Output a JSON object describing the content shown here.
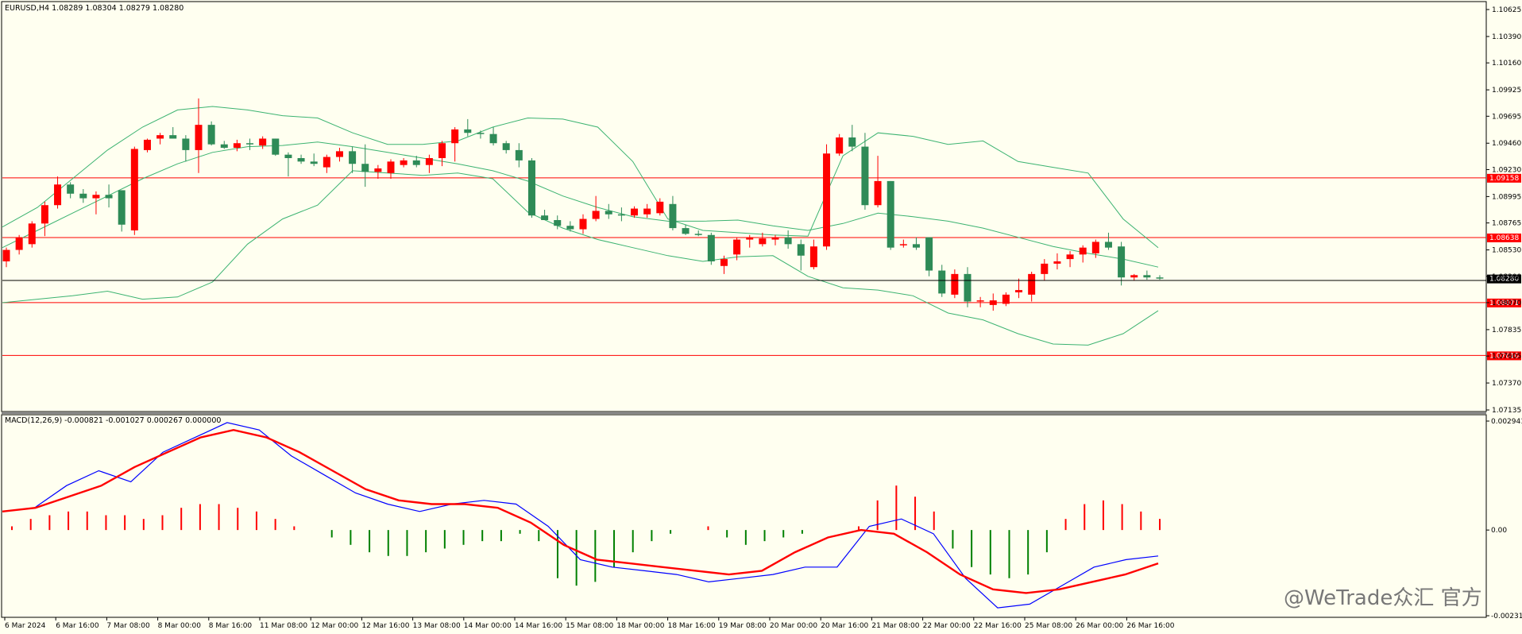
{
  "window": {
    "symbol_header": "EURUSD,H4  1.08289 1.08304 1.08279 1.08280",
    "macd_header": "MACD(12,26,9) -0.000821 -0.001027 0.000267 0.000000",
    "watermark": "@WeTrade众汇 官方"
  },
  "price_axis": {
    "ticks": [
      "1.10625",
      "1.10390",
      "1.10160",
      "1.09925",
      "1.09695",
      "1.09460",
      "1.09230",
      "1.08995",
      "1.08765",
      "1.08530",
      "1.08300",
      "1.08070",
      "1.07835",
      "1.07605",
      "1.07370",
      "1.07135"
    ],
    "current_price_label": "1.08280"
  },
  "horizontal_lines": [
    {
      "label": "1.09158",
      "color": "#ff0000"
    },
    {
      "label": "1.08638",
      "color": "#ff0000"
    },
    {
      "label": "1.08071",
      "color": "#ff0000"
    },
    {
      "label": "1.07610",
      "color": "#ff0000"
    }
  ],
  "macd_axis": {
    "ticks": [
      "0.002941",
      "0.00",
      "-0.002313"
    ]
  },
  "time_axis": {
    "labels": [
      "6 Mar 2024",
      "6 Mar 16:00",
      "7 Mar 08:00",
      "8 Mar 00:00",
      "8 Mar 16:00",
      "11 Mar 08:00",
      "12 Mar 00:00",
      "12 Mar 16:00",
      "13 Mar 08:00",
      "14 Mar 00:00",
      "14 Mar 16:00",
      "15 Mar 08:00",
      "18 Mar 00:00",
      "18 Mar 16:00",
      "19 Mar 08:00",
      "20 Mar 00:00",
      "20 Mar 16:00",
      "21 Mar 08:00",
      "22 Mar 00:00",
      "22 Mar 16:00",
      "25 Mar 08:00",
      "26 Mar 00:00",
      "26 Mar 16:00"
    ]
  },
  "colors": {
    "background": "#fffff0",
    "bull": "#ff0000",
    "bear": "#2e8b57",
    "bands": "#3cb371",
    "macd_line": "#0000ff",
    "signal_line": "#ff0000",
    "histogram_up": "#ff0000",
    "histogram_down": "#008000"
  },
  "chart_data": [
    {
      "type": "candlestick",
      "title": "EURUSD,H4",
      "x_start": "6 Mar 2024",
      "y_range": [
        1.07135,
        1.10625
      ],
      "candles": [
        [
          1.0843,
          1.0855,
          1.0838,
          1.0853
        ],
        [
          1.0853,
          1.0866,
          1.0849,
          1.0864
        ],
        [
          1.0858,
          1.0878,
          1.0855,
          1.0876
        ],
        [
          1.0876,
          1.0895,
          1.0865,
          1.0892
        ],
        [
          1.0892,
          1.0917,
          1.0889,
          1.091
        ],
        [
          1.091,
          1.0912,
          1.0898,
          1.0902
        ],
        [
          1.0902,
          1.0906,
          1.0894,
          1.0898
        ],
        [
          1.0898,
          1.0904,
          1.0884,
          1.0901
        ],
        [
          1.0901,
          1.091,
          1.089,
          1.0898
        ],
        [
          1.0905,
          1.0905,
          1.0869,
          1.0875
        ],
        [
          1.087,
          1.0943,
          1.0866,
          1.0941
        ],
        [
          1.094,
          1.095,
          1.0938,
          1.0949
        ],
        [
          1.095,
          1.0955,
          1.0945,
          1.0953
        ],
        [
          1.0953,
          1.096,
          1.095,
          1.095
        ],
        [
          1.095,
          1.0953,
          1.093,
          1.094
        ],
        [
          1.094,
          1.0985,
          1.092,
          1.0962
        ],
        [
          1.0962,
          1.0965,
          1.0944,
          1.0945
        ],
        [
          1.0945,
          1.0948,
          1.0941,
          1.0942
        ],
        [
          1.0942,
          1.0949,
          1.0939,
          1.0946
        ],
        [
          1.0946,
          1.095,
          1.094,
          1.0945
        ],
        [
          1.0944,
          1.0952,
          1.0941,
          1.095
        ],
        [
          1.095,
          1.095,
          1.0935,
          1.0936
        ],
        [
          1.0936,
          1.0938,
          1.0917,
          1.0933
        ],
        [
          1.0933,
          1.0936,
          1.0928,
          1.093
        ],
        [
          1.093,
          1.0937,
          1.0926,
          1.0928
        ],
        [
          1.0925,
          1.0936,
          1.092,
          1.0934
        ],
        [
          1.0934,
          1.0942,
          1.093,
          1.0939
        ],
        [
          1.0939,
          1.0943,
          1.092,
          1.0928
        ],
        [
          1.0928,
          1.0945,
          1.0908,
          1.0921
        ],
        [
          1.0921,
          1.0927,
          1.0915,
          1.0924
        ],
        [
          1.092,
          1.0932,
          1.0915,
          1.093
        ],
        [
          1.0927,
          1.0933,
          1.0925,
          1.0931
        ],
        [
          1.0931,
          1.0935,
          1.0925,
          1.0927
        ],
        [
          1.0927,
          1.0936,
          1.092,
          1.0933
        ],
        [
          1.0933,
          1.0948,
          1.0926,
          1.0946
        ],
        [
          1.0946,
          1.096,
          1.093,
          1.0958
        ],
        [
          1.0958,
          1.0967,
          1.0952,
          1.0955
        ],
        [
          1.0955,
          1.0957,
          1.095,
          1.0954
        ],
        [
          1.0954,
          1.096,
          1.0944,
          1.0946
        ],
        [
          1.0946,
          1.0948,
          1.0937,
          1.094
        ],
        [
          1.094,
          1.0946,
          1.0925,
          1.0931
        ],
        [
          1.0931,
          1.0933,
          1.0881,
          1.0883
        ],
        [
          1.0883,
          1.0888,
          1.0879,
          1.0879
        ],
        [
          1.0879,
          1.0883,
          1.0871,
          1.0874
        ],
        [
          1.0874,
          1.0878,
          1.0869,
          1.0871
        ],
        [
          1.0871,
          1.0884,
          1.0867,
          1.088
        ],
        [
          1.088,
          1.09,
          1.0878,
          1.0887
        ],
        [
          1.0887,
          1.0893,
          1.088,
          1.0884
        ],
        [
          1.0884,
          1.089,
          1.0878,
          1.0883
        ],
        [
          1.0883,
          1.0891,
          1.0881,
          1.0889
        ],
        [
          1.0884,
          1.0893,
          1.0881,
          1.0889
        ],
        [
          1.0885,
          1.0898,
          1.0883,
          1.0895
        ],
        [
          1.0893,
          1.09,
          1.087,
          1.0872
        ],
        [
          1.0872,
          1.0875,
          1.0866,
          1.0867
        ],
        [
          1.0867,
          1.087,
          1.0865,
          1.0866
        ],
        [
          1.0866,
          1.0868,
          1.084,
          1.0843
        ],
        [
          1.0839,
          1.0848,
          1.0832,
          1.0845
        ],
        [
          1.0849,
          1.0864,
          1.0844,
          1.0862
        ],
        [
          1.0862,
          1.0866,
          1.0855,
          1.0864
        ],
        [
          1.0858,
          1.0868,
          1.0856,
          1.0863
        ],
        [
          1.0862,
          1.0866,
          1.0857,
          1.0864
        ],
        [
          1.0864,
          1.087,
          1.0854,
          1.0858
        ],
        [
          1.0858,
          1.0862,
          1.0835,
          1.0848
        ],
        [
          1.0838,
          1.0862,
          1.0836,
          1.0856
        ],
        [
          1.0856,
          1.0945,
          1.0853,
          1.0937
        ],
        [
          1.0937,
          1.0954,
          1.0935,
          1.0951
        ],
        [
          1.0951,
          1.0962,
          1.0939,
          1.0943
        ],
        [
          1.0943,
          1.0955,
          1.0888,
          1.0892
        ],
        [
          1.0892,
          1.0935,
          1.089,
          1.0913
        ],
        [
          1.0913,
          1.0913,
          1.0853,
          1.0855
        ],
        [
          1.0857,
          1.0862,
          1.0855,
          1.0858
        ],
        [
          1.0858,
          1.0864,
          1.0853,
          1.0855
        ],
        [
          1.0864,
          1.0864,
          1.083,
          1.0835
        ],
        [
          1.0835,
          1.084,
          1.0812,
          1.0815
        ],
        [
          1.0814,
          1.0836,
          1.0811,
          1.0832
        ],
        [
          1.0832,
          1.0838,
          1.0803,
          1.0808
        ],
        [
          1.0808,
          1.0812,
          1.0803,
          1.0809
        ],
        [
          1.0805,
          1.0815,
          1.08,
          1.0809
        ],
        [
          1.0806,
          1.0816,
          1.0804,
          1.0814
        ],
        [
          1.0816,
          1.0828,
          1.0811,
          1.0818
        ],
        [
          1.0814,
          1.0834,
          1.0808,
          1.0832
        ],
        [
          1.0832,
          1.0845,
          1.0826,
          1.0841
        ],
        [
          1.0841,
          1.085,
          1.0836,
          1.0843
        ],
        [
          1.0845,
          1.0852,
          1.0838,
          1.0849
        ],
        [
          1.0849,
          1.0857,
          1.0842,
          1.0855
        ],
        [
          1.085,
          1.0862,
          1.0846,
          1.086
        ],
        [
          1.086,
          1.0868,
          1.0853,
          1.0855
        ],
        [
          1.0856,
          1.086,
          1.0822,
          1.0829
        ],
        [
          1.0829,
          1.0832,
          1.0826,
          1.0831
        ],
        [
          1.0831,
          1.0835,
          1.0827,
          1.0829
        ],
        [
          1.0829,
          1.0831,
          1.0827,
          1.0828
        ]
      ],
      "bollinger_bands": {
        "upper": [
          1.0873,
          1.089,
          1.0915,
          1.094,
          1.096,
          1.0975,
          1.0978,
          1.0975,
          1.097,
          1.0968,
          1.0955,
          1.0945,
          1.0945,
          1.0948,
          1.096,
          1.0968,
          1.0967,
          1.096,
          1.093,
          1.088,
          1.087,
          1.0868,
          1.0866,
          1.0865,
          1.0935,
          1.0955,
          1.0952,
          1.0945,
          1.0948,
          1.093,
          1.0925,
          1.092,
          1.088,
          1.0855
        ],
        "middle": [
          1.0855,
          1.087,
          1.0885,
          1.09,
          1.0915,
          1.0928,
          1.0938,
          1.0943,
          1.0944,
          1.0947,
          1.0943,
          1.0938,
          1.0933,
          1.0928,
          1.0922,
          1.0913,
          1.09,
          1.089,
          1.0882,
          1.0878,
          1.0878,
          1.0879,
          1.0874,
          1.087,
          1.0876,
          1.0885,
          1.0882,
          1.0878,
          1.0872,
          1.0864,
          1.0856,
          1.085,
          1.0845,
          1.0838
        ],
        "lower": [
          1.0807,
          1.081,
          1.0813,
          1.0817,
          1.081,
          1.0812,
          1.0825,
          1.0858,
          1.088,
          1.0892,
          1.0922,
          1.092,
          1.0918,
          1.092,
          1.0915,
          1.0886,
          1.0872,
          1.0862,
          1.0855,
          1.0848,
          1.0843,
          1.0847,
          1.0848,
          1.083,
          1.082,
          1.0818,
          1.0813,
          1.0798,
          1.0792,
          1.078,
          1.0771,
          1.077,
          1.078,
          1.08
        ]
      }
    },
    {
      "type": "macd",
      "title": "MACD(12,26,9)",
      "y_range": [
        -0.002313,
        0.002941
      ],
      "macd": [
        0.0005,
        0.0006,
        0.0012,
        0.0016,
        0.0013,
        0.0021,
        0.0025,
        0.0029,
        0.0027,
        0.002,
        0.0015,
        0.001,
        0.0007,
        0.0005,
        0.0007,
        0.0008,
        0.0007,
        0.0001,
        -0.0008,
        -0.001,
        -0.0011,
        -0.0012,
        -0.0014,
        -0.0013,
        -0.0012,
        -0.001,
        -0.001,
        0.0001,
        0.0003,
        -0.0001,
        -0.0013,
        -0.0021,
        -0.002,
        -0.0015,
        -0.001,
        -0.0008,
        -0.0007
      ],
      "signal": [
        0.0005,
        0.0006,
        0.0009,
        0.0012,
        0.0017,
        0.0021,
        0.0025,
        0.0027,
        0.0025,
        0.0021,
        0.0016,
        0.0011,
        0.0008,
        0.0007,
        0.0007,
        0.0006,
        0.0002,
        -0.0004,
        -0.0008,
        -0.0009,
        -0.001,
        -0.0011,
        -0.0012,
        -0.0011,
        -0.0006,
        -0.0002,
        0.0,
        -0.0001,
        -0.0006,
        -0.0012,
        -0.0016,
        -0.0017,
        -0.0016,
        -0.0014,
        -0.0012,
        -0.0009
      ],
      "histogram": [
        0.0001,
        0.0003,
        0.0004,
        0.0005,
        0.0005,
        0.0004,
        0.0004,
        0.0003,
        0.0004,
        0.0006,
        0.0007,
        0.0007,
        0.0006,
        0.0005,
        0.0003,
        0.0001,
        0.0,
        -0.0002,
        -0.0004,
        -0.0006,
        -0.0007,
        -0.0007,
        -0.0006,
        -0.0005,
        -0.0004,
        -0.0003,
        -0.0003,
        -0.0001,
        -0.0003,
        -0.0013,
        -0.0015,
        -0.0014,
        -0.001,
        -0.0006,
        -0.0003,
        -0.0001,
        0.0,
        0.0001,
        -0.0002,
        -0.0004,
        -0.0003,
        -0.0002,
        -0.0001,
        0.0,
        0.0,
        0.0001,
        0.0008,
        0.0012,
        0.0009,
        0.0005,
        -0.0005,
        -0.001,
        -0.0012,
        -0.0013,
        -0.0012,
        -0.0006,
        0.0003,
        0.0007,
        0.0008,
        0.0007,
        0.0005,
        0.0003
      ]
    }
  ]
}
